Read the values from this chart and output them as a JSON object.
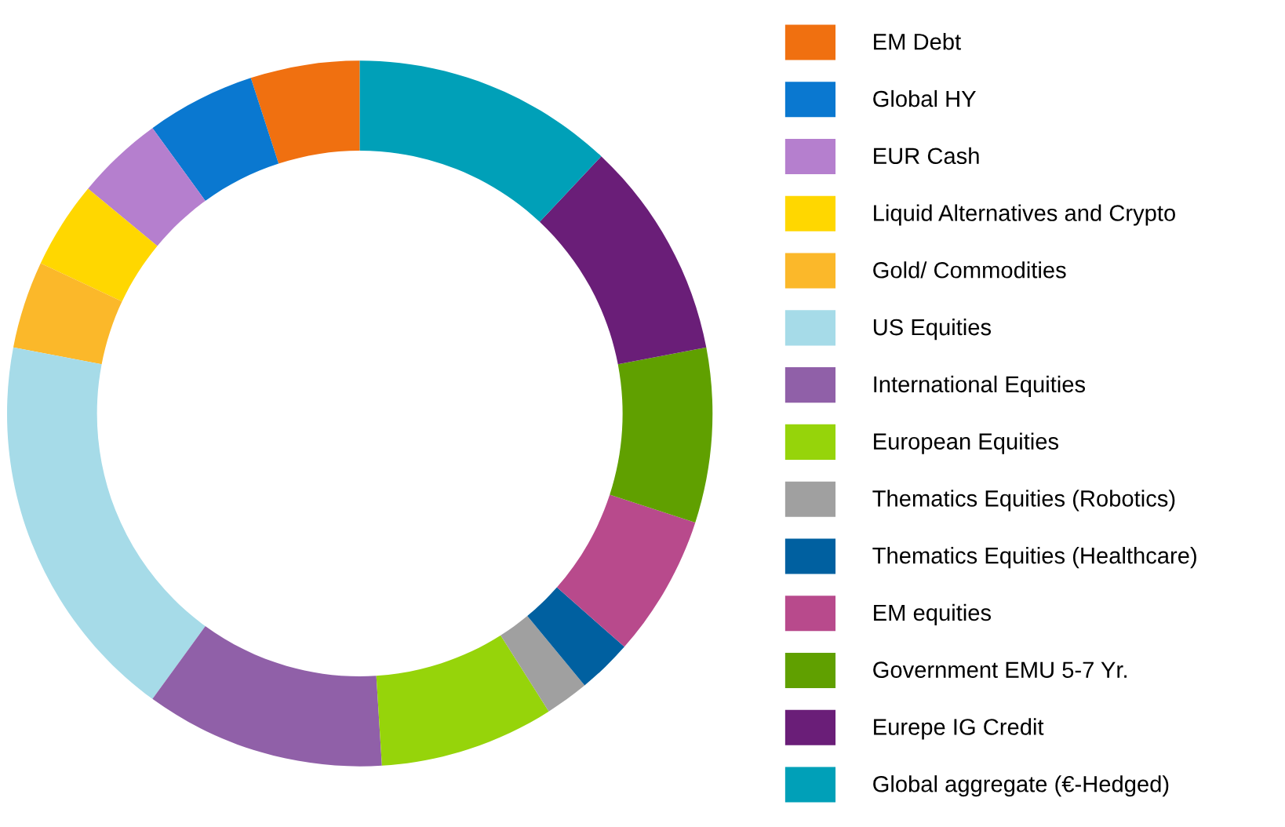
{
  "chart_data": {
    "type": "donut",
    "categories": [
      "EM Debt",
      "Global HY",
      "EUR Cash",
      "Liquid Alternatives and Crypto",
      "Gold/ Commodities",
      "US Equities",
      "International Equities",
      "European Equities",
      "Thematics Equities (Robotics)",
      "Thematics Equities (Healthcare)",
      "EM equities",
      "Government EMU 5-7 Yr.",
      "Eurepe IG Credit",
      "Global aggregate (€-Hedged)"
    ],
    "values": [
      5,
      5,
      4,
      4,
      4,
      18,
      11,
      8,
      2,
      2.5,
      6.5,
      8,
      10,
      12
    ],
    "colors": [
      "#f07010",
      "#0a78d0",
      "#b57fce",
      "#ffd700",
      "#fbb82a",
      "#a6dbe8",
      "#9060a8",
      "#96d40a",
      "#a0a0a0",
      "#0060a0",
      "#b84a8c",
      "#60a000",
      "#6a1e78",
      "#00a0b8"
    ],
    "legend": "right"
  }
}
